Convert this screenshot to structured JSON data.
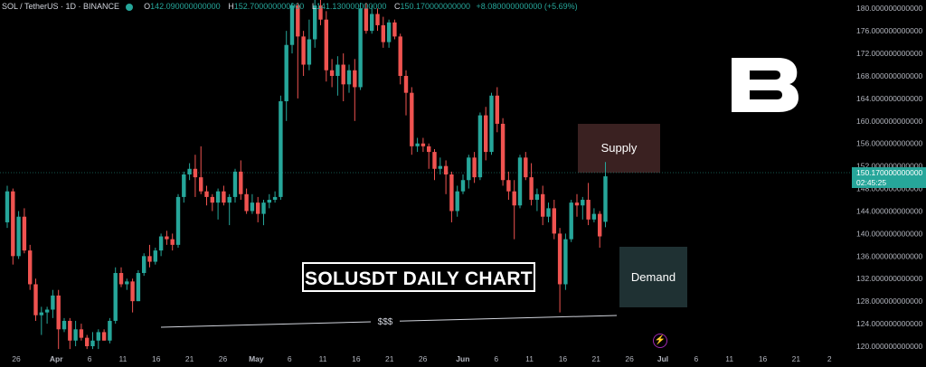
{
  "header": {
    "symbol": "SOL / TetherUS · 1D · BINANCE",
    "open_key": "O",
    "open": "142.090000000000",
    "high_key": "H",
    "high": "152.700000000000",
    "low_key": "L",
    "low": "141.130000000000",
    "close_key": "C",
    "close": "150.170000000000",
    "change": "+8.080000000000 (+5.69%)"
  },
  "title_box": "SOLUSDT DAILY CHART",
  "zones": {
    "supply": "Supply",
    "demand": "Demand"
  },
  "liquidity_label": "$$$",
  "logo_text": "B",
  "price_badge": {
    "price": "150.170000000000",
    "countdown": "02:45:25"
  },
  "flash_icon": "lightning-icon",
  "colors": {
    "up": "#26a69a",
    "down": "#ef5350",
    "supply": "#3a2121",
    "demand": "#1f3133"
  },
  "chart_data": {
    "type": "candlestick",
    "y_ticks": [
      120,
      124,
      128,
      132,
      136,
      140,
      144,
      148,
      152,
      156,
      160,
      164,
      168,
      172,
      176,
      180
    ],
    "y_tick_labels": [
      "120.000000000000",
      "124.000000000000",
      "128.000000000000",
      "132.000000000000",
      "136.000000000000",
      "140.000000000000",
      "144.000000000000",
      "148.000000000000",
      "152.000000000000",
      "156.000000000000",
      "160.000000000000",
      "164.000000000000",
      "168.000000000000",
      "172.000000000000",
      "176.000000000000",
      "180.000000000000"
    ],
    "ylim": [
      120,
      181
    ],
    "x_ticks": [
      {
        "label": "26",
        "day": 0
      },
      {
        "label": "Apr",
        "day": 6
      },
      {
        "label": "6",
        "day": 11
      },
      {
        "label": "11",
        "day": 16
      },
      {
        "label": "16",
        "day": 21
      },
      {
        "label": "21",
        "day": 26
      },
      {
        "label": "26",
        "day": 31
      },
      {
        "label": "May",
        "day": 36
      },
      {
        "label": "6",
        "day": 41
      },
      {
        "label": "11",
        "day": 46
      },
      {
        "label": "16",
        "day": 51
      },
      {
        "label": "21",
        "day": 56
      },
      {
        "label": "26",
        "day": 61
      },
      {
        "label": "Jun",
        "day": 67
      },
      {
        "label": "6",
        "day": 72
      },
      {
        "label": "11",
        "day": 77
      },
      {
        "label": "16",
        "day": 82
      },
      {
        "label": "21",
        "day": 87
      },
      {
        "label": "26",
        "day": 92
      },
      {
        "label": "Jul",
        "day": 97
      },
      {
        "label": "6",
        "day": 102
      },
      {
        "label": "11",
        "day": 107
      },
      {
        "label": "16",
        "day": 112
      },
      {
        "label": "21",
        "day": 117
      },
      {
        "label": "2",
        "day": 122
      }
    ],
    "candles": [
      [
        142.0,
        147.5,
        141.0,
        148.5
      ],
      [
        147.5,
        136.0,
        134.5,
        148.0
      ],
      [
        136.0,
        143.0,
        135.5,
        144.0
      ],
      [
        143.0,
        137.0,
        136.5,
        144.5
      ],
      [
        137.0,
        131.0,
        130.0,
        138.0
      ],
      [
        131.0,
        125.5,
        124.5,
        132.0
      ],
      [
        125.5,
        126.0,
        122.0,
        127.0
      ],
      [
        126.0,
        126.5,
        124.0,
        127.0
      ],
      [
        126.5,
        129.0,
        125.0,
        130.0
      ],
      [
        129.0,
        123.0,
        119.5,
        130.0
      ],
      [
        123.0,
        124.5,
        122.5,
        125.0
      ],
      [
        124.5,
        121.0,
        119.5,
        125.0
      ],
      [
        121.0,
        123.0,
        120.0,
        124.5
      ],
      [
        123.0,
        121.5,
        121.0,
        124.0
      ],
      [
        121.5,
        120.0,
        119.5,
        122.0
      ],
      [
        120.0,
        121.0,
        119.5,
        122.5
      ],
      [
        121.0,
        122.5,
        119.5,
        123.0
      ],
      [
        122.5,
        121.0,
        121.0,
        123.0
      ],
      [
        121.0,
        124.5,
        120.5,
        125.0
      ],
      [
        124.5,
        133.0,
        124.0,
        134.0
      ],
      [
        133.0,
        131.0,
        130.5,
        134.0
      ],
      [
        131.0,
        131.5,
        130.0,
        132.0
      ],
      [
        131.5,
        128.0,
        126.0,
        132.0
      ],
      [
        128.0,
        133.0,
        128.0,
        133.5
      ],
      [
        133.0,
        136.0,
        132.5,
        136.5
      ],
      [
        136.0,
        135.0,
        134.0,
        138.0
      ],
      [
        135.0,
        137.0,
        134.5,
        137.5
      ],
      [
        137.0,
        139.5,
        136.0,
        140.0
      ],
      [
        139.5,
        139.0,
        138.0,
        140.5
      ],
      [
        139.0,
        138.0,
        137.0,
        140.0
      ],
      [
        138.0,
        146.5,
        137.5,
        147.0
      ],
      [
        146.5,
        150.5,
        145.5,
        151.0
      ],
      [
        150.5,
        151.5,
        149.5,
        152.5
      ],
      [
        151.5,
        150.0,
        146.5,
        154.0
      ],
      [
        150.0,
        147.5,
        147.0,
        155.5
      ],
      [
        147.5,
        146.5,
        145.0,
        148.5
      ],
      [
        146.5,
        145.5,
        144.0,
        147.0
      ],
      [
        145.5,
        147.5,
        142.5,
        148.0
      ],
      [
        147.5,
        145.5,
        145.0,
        148.5
      ],
      [
        145.5,
        146.5,
        141.5,
        147.0
      ],
      [
        146.5,
        151.0,
        145.5,
        151.5
      ],
      [
        151.0,
        147.0,
        146.0,
        153.0
      ],
      [
        147.0,
        144.0,
        143.5,
        148.0
      ],
      [
        144.0,
        145.5,
        143.5,
        147.0
      ],
      [
        145.5,
        143.5,
        142.0,
        146.5
      ],
      [
        143.5,
        145.5,
        141.5,
        146.0
      ],
      [
        145.5,
        146.0,
        144.5,
        147.0
      ],
      [
        146.0,
        146.5,
        145.5,
        147.5
      ],
      [
        146.5,
        163.5,
        146.0,
        164.5
      ],
      [
        163.5,
        173.5,
        160.0,
        176.0
      ],
      [
        173.5,
        180.5,
        172.0,
        181.0
      ],
      [
        180.5,
        175.0,
        164.0,
        181.0
      ],
      [
        175.0,
        170.0,
        168.0,
        176.0
      ],
      [
        170.0,
        174.5,
        169.0,
        178.0
      ],
      [
        174.5,
        180.5,
        173.0,
        181.5
      ],
      [
        180.5,
        178.0,
        177.0,
        181.5
      ],
      [
        178.0,
        169.0,
        167.0,
        179.5
      ],
      [
        169.0,
        168.0,
        166.0,
        171.0
      ],
      [
        168.0,
        170.0,
        164.5,
        171.5
      ],
      [
        170.0,
        166.5,
        163.5,
        172.0
      ],
      [
        166.5,
        169.0,
        165.0,
        170.0
      ],
      [
        169.0,
        166.0,
        160.0,
        171.0
      ],
      [
        166.0,
        180.0,
        165.5,
        181.0
      ],
      [
        180.0,
        176.0,
        175.5,
        181.0
      ],
      [
        176.0,
        179.0,
        175.5,
        180.5
      ],
      [
        179.0,
        177.0,
        176.0,
        180.0
      ],
      [
        177.0,
        174.0,
        173.0,
        178.5
      ],
      [
        174.0,
        177.5,
        173.0,
        178.0
      ],
      [
        177.5,
        175.0,
        174.5,
        178.0
      ],
      [
        175.0,
        168.0,
        166.5,
        175.5
      ],
      [
        168.0,
        165.0,
        161.0,
        169.0
      ],
      [
        165.0,
        155.5,
        154.0,
        166.0
      ],
      [
        155.5,
        156.0,
        154.5,
        157.0
      ],
      [
        156.0,
        155.5,
        154.5,
        157.0
      ],
      [
        155.5,
        154.5,
        151.5,
        156.0
      ],
      [
        154.5,
        151.5,
        149.5,
        155.0
      ],
      [
        151.5,
        152.0,
        150.5,
        153.5
      ],
      [
        152.0,
        150.5,
        147.0,
        153.0
      ],
      [
        150.5,
        144.0,
        142.0,
        151.0
      ],
      [
        144.0,
        147.5,
        143.0,
        148.5
      ],
      [
        147.5,
        149.5,
        147.0,
        150.5
      ],
      [
        149.5,
        153.5,
        148.0,
        154.0
      ],
      [
        153.5,
        150.0,
        149.0,
        154.5
      ],
      [
        150.0,
        161.0,
        149.5,
        161.5
      ],
      [
        161.0,
        154.5,
        153.0,
        162.5
      ],
      [
        154.5,
        164.5,
        154.0,
        165.0
      ],
      [
        164.5,
        159.5,
        158.0,
        166.0
      ],
      [
        159.5,
        149.5,
        148.5,
        160.5
      ],
      [
        149.5,
        147.5,
        146.0,
        151.0
      ],
      [
        147.5,
        145.0,
        139.0,
        149.5
      ],
      [
        145.0,
        153.5,
        144.5,
        154.0
      ],
      [
        153.5,
        150.0,
        149.5,
        154.5
      ],
      [
        150.0,
        146.0,
        145.0,
        152.5
      ],
      [
        146.0,
        147.0,
        144.0,
        148.0
      ],
      [
        147.0,
        143.0,
        141.5,
        148.5
      ],
      [
        143.0,
        144.5,
        142.0,
        145.5
      ],
      [
        144.5,
        140.0,
        139.0,
        146.0
      ],
      [
        140.0,
        131.0,
        126.0,
        141.0
      ],
      [
        131.0,
        139.0,
        130.0,
        140.0
      ],
      [
        139.0,
        145.5,
        138.5,
        146.0
      ],
      [
        145.5,
        145.0,
        143.0,
        147.0
      ],
      [
        145.0,
        146.0,
        142.5,
        146.5
      ],
      [
        146.0,
        142.5,
        141.5,
        149.0
      ],
      [
        142.5,
        143.5,
        142.0,
        144.5
      ],
      [
        143.5,
        139.5,
        137.5,
        144.0
      ],
      [
        142.09,
        150.17,
        141.13,
        152.7
      ]
    ],
    "first_candle_x": 8,
    "day_spacing": 6.3
  }
}
